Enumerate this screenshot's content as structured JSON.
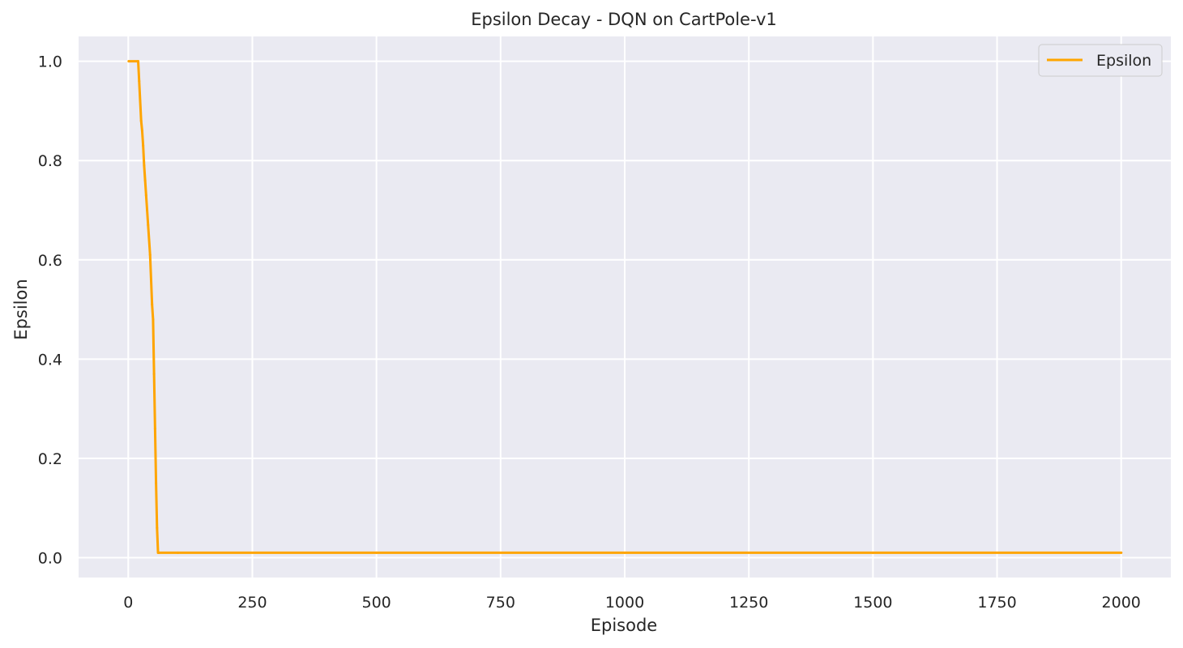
{
  "chart_data": {
    "type": "line",
    "title": "Epsilon Decay - DQN on CartPole-v1",
    "xlabel": "Episode",
    "ylabel": "Epsilon",
    "xlim": [
      -100,
      2100
    ],
    "ylim": [
      -0.04,
      1.05
    ],
    "xticks": [
      0,
      250,
      500,
      750,
      1000,
      1250,
      1500,
      1750,
      2000
    ],
    "xtick_labels": [
      "0",
      "250",
      "500",
      "750",
      "1000",
      "1250",
      "1500",
      "1750",
      "2000"
    ],
    "yticks": [
      0.0,
      0.2,
      0.4,
      0.6,
      0.8,
      1.0
    ],
    "ytick_labels": [
      "0.0",
      "0.2",
      "0.4",
      "0.6",
      "0.8",
      "1.0"
    ],
    "grid": true,
    "legend": {
      "position": "top-right",
      "entries": [
        "Epsilon"
      ]
    },
    "series": [
      {
        "name": "Epsilon",
        "color": "#ffa500",
        "x": [
          1,
          20,
          22,
          24,
          26,
          28,
          30,
          32,
          34,
          36,
          38,
          40,
          42,
          44,
          46,
          48,
          50,
          52,
          54,
          56,
          58,
          60,
          62,
          100,
          500,
          1000,
          1500,
          2000
        ],
        "y": [
          1.0,
          1.0,
          0.96,
          0.92,
          0.88,
          0.86,
          0.83,
          0.79,
          0.76,
          0.73,
          0.7,
          0.67,
          0.64,
          0.61,
          0.56,
          0.51,
          0.48,
          0.37,
          0.26,
          0.15,
          0.06,
          0.01,
          0.01,
          0.01,
          0.01,
          0.01,
          0.01,
          0.01
        ]
      }
    ]
  }
}
